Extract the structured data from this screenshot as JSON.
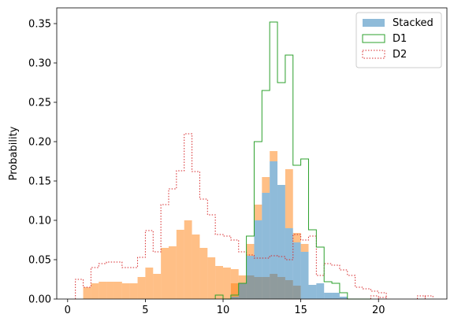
{
  "chart_data": {
    "type": "histogram",
    "title": "",
    "xlabel": "",
    "ylabel": "Probability",
    "xlim": [
      -0.7,
      24.4
    ],
    "ylim": [
      0,
      0.37
    ],
    "xticks": [
      0,
      5,
      10,
      15,
      20
    ],
    "yticks": [
      0.0,
      0.05,
      0.1,
      0.15,
      0.2,
      0.25,
      0.3,
      0.35
    ],
    "ytick_labels": [
      "0.00",
      "0.05",
      "0.10",
      "0.15",
      "0.20",
      "0.25",
      "0.30",
      "0.35"
    ],
    "grid": false,
    "legend_position": "top-right",
    "bins": {
      "start": 0.5,
      "width": 0.5,
      "stacked_orange": [
        0.0,
        0.015,
        0.02,
        0.022,
        0.022,
        0.022,
        0.02,
        0.02,
        0.028,
        0.04,
        0.032,
        0.065,
        0.067,
        0.088,
        0.1,
        0.082,
        0.065,
        0.053,
        0.042,
        0.04,
        0.038,
        0.03,
        0.03,
        0.028,
        0.028,
        0.032,
        0.028,
        0.024,
        0.017,
        0.0,
        0.0,
        0.0,
        0.0,
        0.0,
        0.0,
        0.0,
        0.0,
        0.0,
        0.0,
        0.0,
        0.0,
        0.0,
        0.0,
        0.0,
        0.0,
        0.0,
        0.0,
        0.0,
        0.0,
        0.0,
        0.0,
        0.0,
        0.0,
        0.0,
        0.0,
        0.0,
        0.0,
        0.0,
        0.0,
        0.0,
        0.0,
        0.0,
        0.0,
        0.0,
        0.0,
        0.0
      ]
    },
    "series": [
      {
        "name": "Stacked",
        "color": "#1f77b4",
        "opacity": 0.5,
        "bin_width": 0.5,
        "bins": [
          {
            "x": 9.5,
            "blue": 0.0,
            "orange": 0.028
          },
          {
            "x": 10.0,
            "blue": 0.0,
            "orange": 0.024
          },
          {
            "x": 10.5,
            "blue": 0.003,
            "orange": 0.017
          },
          {
            "x": 11.0,
            "blue": 0.02,
            "orange": 0.0
          },
          {
            "x": 11.5,
            "blue": 0.055,
            "orange": 0.015
          },
          {
            "x": 12.0,
            "blue": 0.1,
            "orange": 0.02
          },
          {
            "x": 12.5,
            "blue": 0.135,
            "orange": 0.02
          },
          {
            "x": 13.0,
            "blue": 0.175,
            "orange": 0.013
          },
          {
            "x": 13.5,
            "blue": 0.145,
            "orange": 0.0
          },
          {
            "x": 14.0,
            "blue": 0.09,
            "orange": 0.075
          },
          {
            "x": 14.5,
            "blue": 0.072,
            "orange": 0.012
          },
          {
            "x": 15.0,
            "blue": 0.06,
            "orange": 0.01
          },
          {
            "x": 15.5,
            "blue": 0.018,
            "orange": 0.0
          },
          {
            "x": 16.0,
            "blue": 0.02,
            "orange": 0.0
          },
          {
            "x": 16.5,
            "blue": 0.008,
            "orange": 0.0
          },
          {
            "x": 17.0,
            "blue": 0.008,
            "orange": 0.0
          },
          {
            "x": 17.5,
            "blue": 0.003,
            "orange": 0.0
          }
        ]
      },
      {
        "name": "D1",
        "color": "#2ca02c",
        "linestyle": "solid",
        "bin_start": 9.5,
        "bin_width": 0.5,
        "values": [
          0.005,
          0.0,
          0.005,
          0.02,
          0.08,
          0.2,
          0.265,
          0.352,
          0.275,
          0.31,
          0.17,
          0.178,
          0.088,
          0.066,
          0.022,
          0.02,
          0.008,
          0.0,
          0.0,
          0.0
        ]
      },
      {
        "name": "D2",
        "color": "#d62728",
        "linestyle": "dotted",
        "bin_start": 0.5,
        "bin_width": 0.5,
        "values": [
          0.025,
          0.015,
          0.04,
          0.045,
          0.047,
          0.047,
          0.04,
          0.04,
          0.053,
          0.087,
          0.06,
          0.12,
          0.14,
          0.163,
          0.21,
          0.162,
          0.127,
          0.107,
          0.082,
          0.08,
          0.075,
          0.06,
          0.056,
          0.052,
          0.052,
          0.055,
          0.054,
          0.05,
          0.082,
          0.075,
          0.08,
          0.03,
          0.045,
          0.043,
          0.037,
          0.03,
          0.015,
          0.013,
          0.01,
          0.008,
          0.0,
          0.0,
          0.0,
          0.0,
          0.003,
          0.0,
          0.0,
          0.0,
          0.0,
          0.0,
          0.0,
          0.0,
          0.0,
          0.0,
          0.0,
          0.0,
          0.0,
          0.0,
          0.0,
          0.003,
          0.0
        ],
        "extra_bins": [
          {
            "x": 19.5,
            "value": 0.004
          },
          {
            "x": 20.0,
            "value": 0.002
          },
          {
            "x": 22.5,
            "value": 0.004
          },
          {
            "x": 23.0,
            "value": 0.004
          }
        ]
      }
    ],
    "legend": [
      {
        "label": "Stacked",
        "style": "patch-fill",
        "color": "#1f77b4"
      },
      {
        "label": "D1",
        "style": "patch-solid",
        "color": "#2ca02c"
      },
      {
        "label": "D2",
        "style": "patch-dotted",
        "color": "#d62728"
      }
    ],
    "orange_color": "#ff7f0e"
  }
}
